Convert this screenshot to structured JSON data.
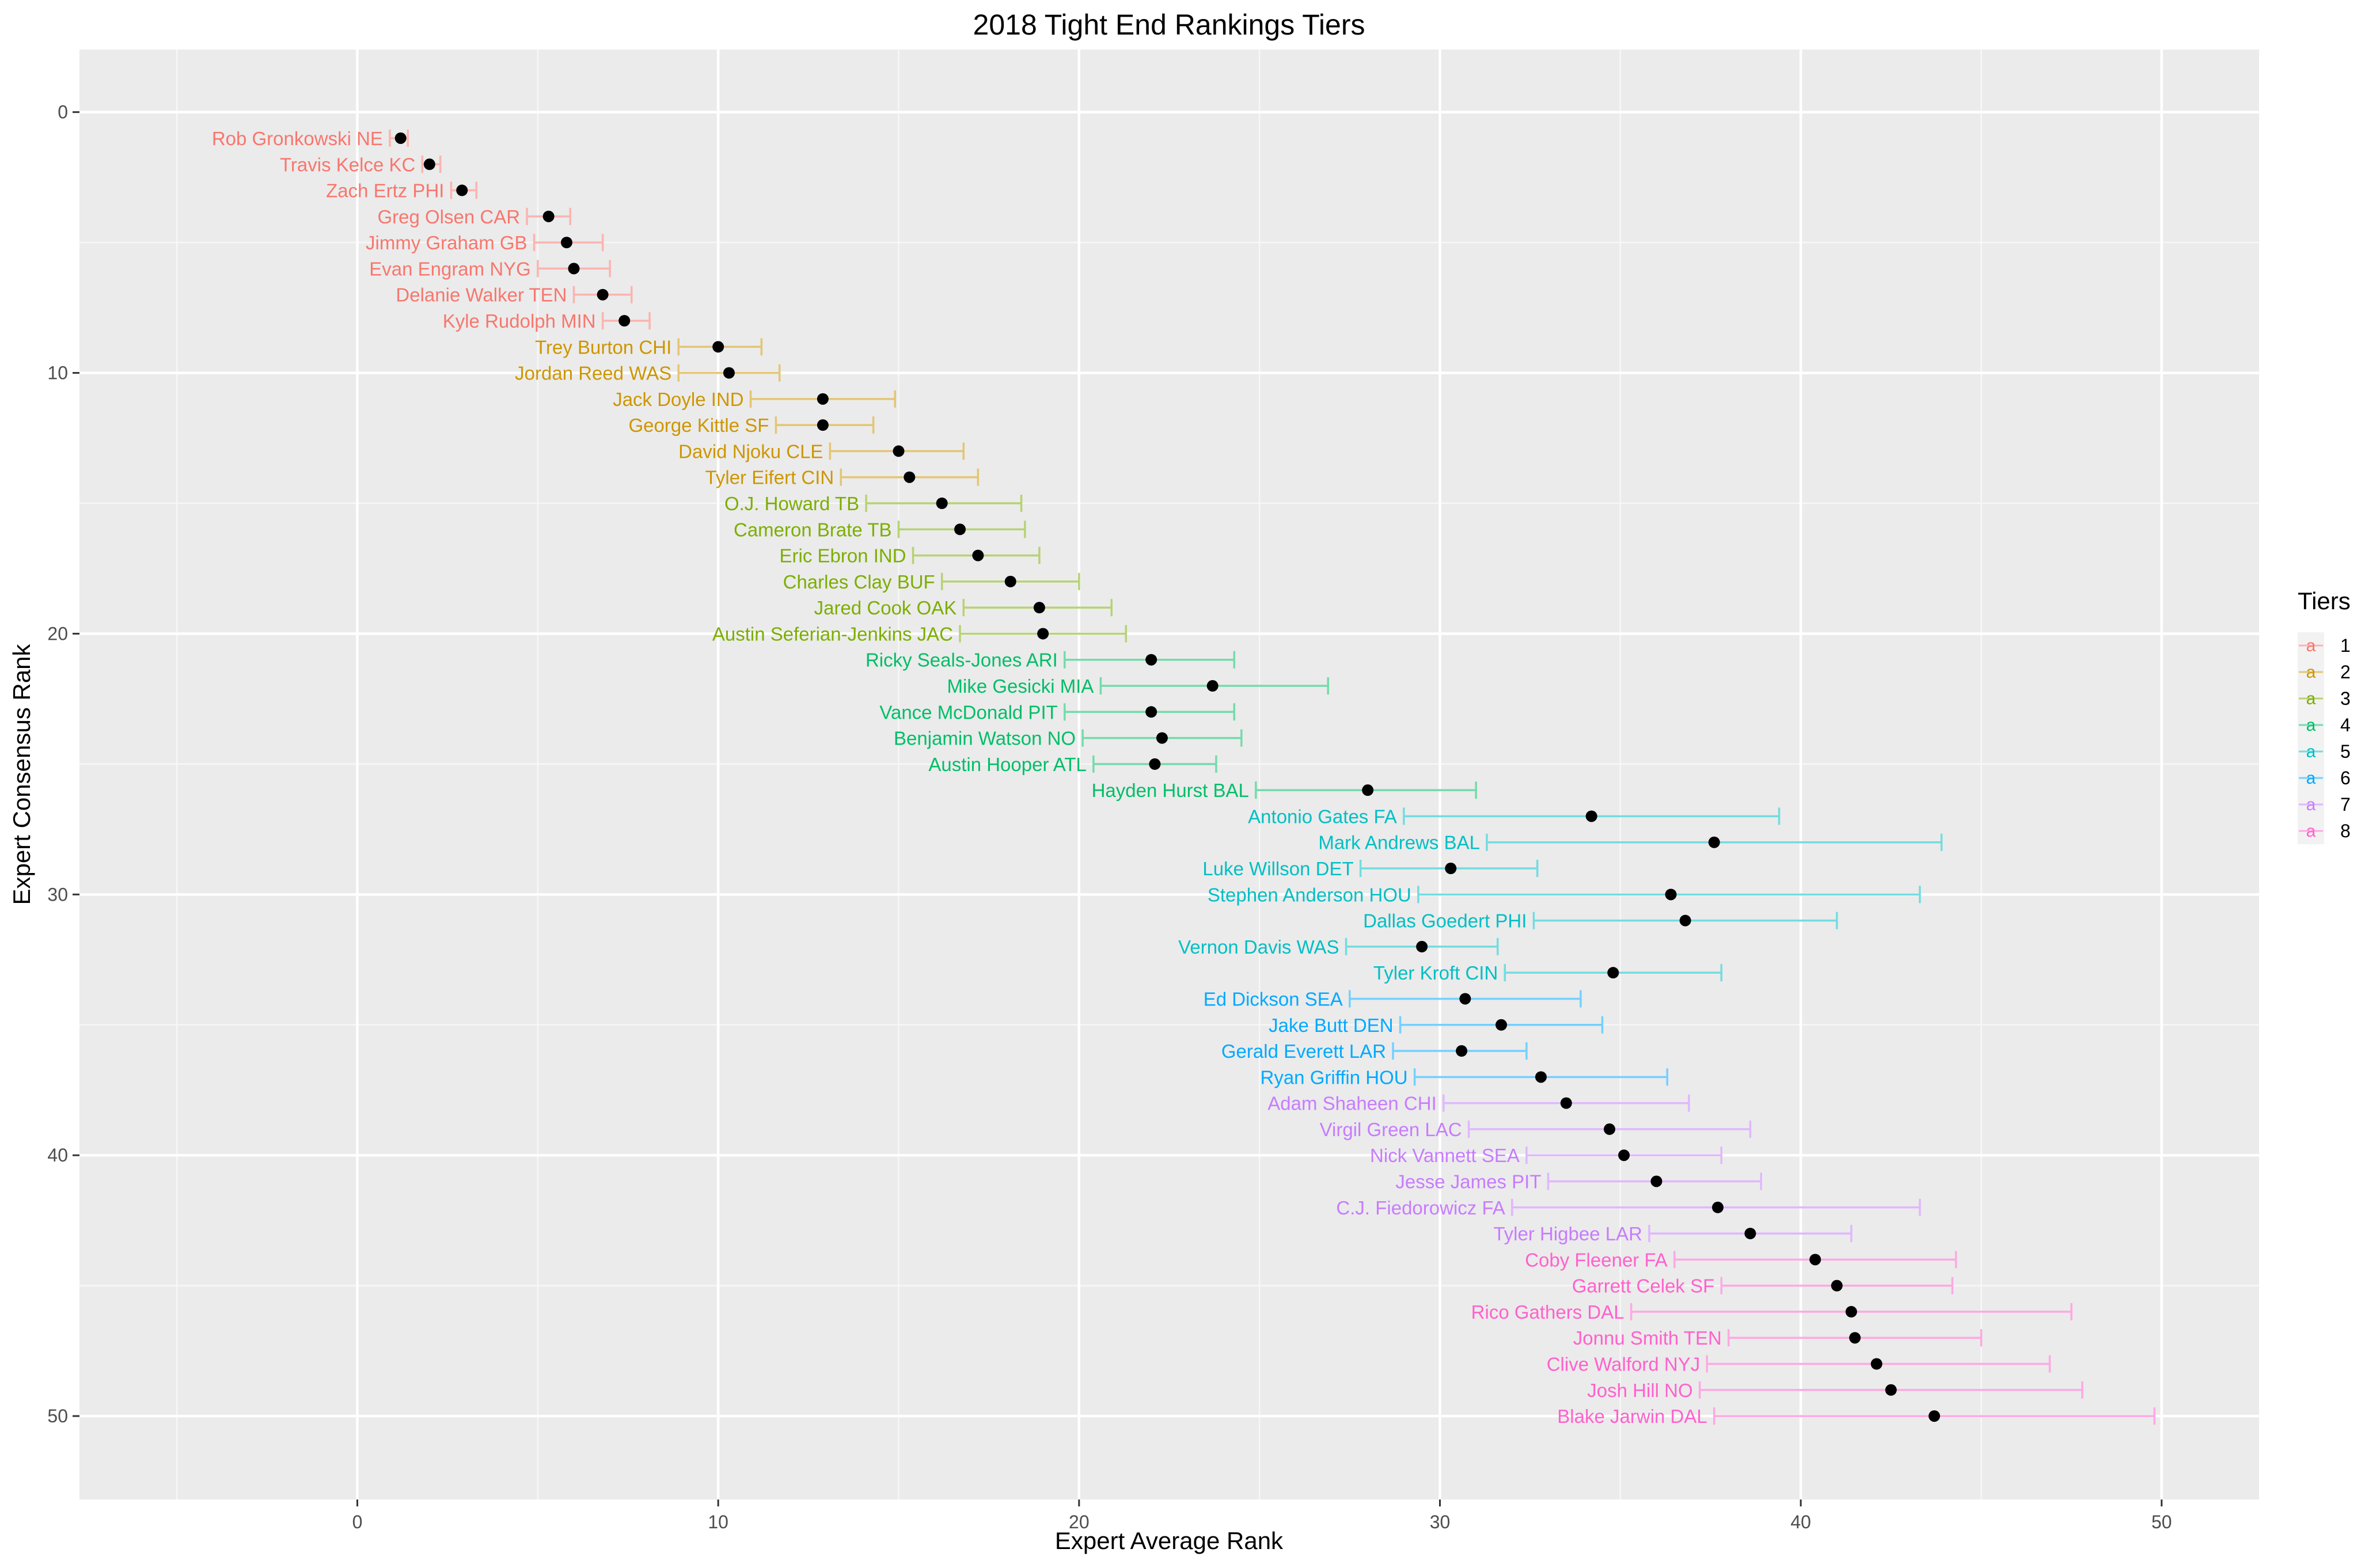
{
  "chart_data": {
    "type": "scatter",
    "title": "2018 Tight End Rankings Tiers",
    "xlabel": "Expert Average Rank",
    "ylabel": "Expert Consensus Rank",
    "xlim": [
      -7.7,
      52.7
    ],
    "ylim": [
      -2.4,
      53.2
    ],
    "y_reversed": true,
    "x_ticks": [
      0,
      10,
      20,
      30,
      40,
      50
    ],
    "y_ticks": [
      0,
      10,
      20,
      30,
      40,
      50
    ],
    "grid": true,
    "legend": {
      "title": "Tiers",
      "position": "right",
      "key_glyph": "a",
      "entries": [
        {
          "label": "1",
          "color": "#F8766D"
        },
        {
          "label": "2",
          "color": "#CD9600"
        },
        {
          "label": "3",
          "color": "#7CAE00"
        },
        {
          "label": "4",
          "color": "#00BE67"
        },
        {
          "label": "5",
          "color": "#00BFC4"
        },
        {
          "label": "6",
          "color": "#00A9FF"
        },
        {
          "label": "7",
          "color": "#C77CFF"
        },
        {
          "label": "8",
          "color": "#FF61CC"
        }
      ]
    },
    "points": [
      {
        "name": "Rob Gronkowski NE",
        "rank": 1,
        "avg": 1.2,
        "lo": 0.9,
        "hi": 1.4,
        "tier": 1
      },
      {
        "name": "Travis Kelce KC",
        "rank": 2,
        "avg": 2.0,
        "lo": 1.8,
        "hi": 2.3,
        "tier": 1
      },
      {
        "name": "Zach Ertz PHI",
        "rank": 3,
        "avg": 2.9,
        "lo": 2.6,
        "hi": 3.3,
        "tier": 1
      },
      {
        "name": "Greg Olsen CAR",
        "rank": 4,
        "avg": 5.3,
        "lo": 4.7,
        "hi": 5.9,
        "tier": 1
      },
      {
        "name": "Jimmy Graham GB",
        "rank": 5,
        "avg": 5.8,
        "lo": 4.9,
        "hi": 6.8,
        "tier": 1
      },
      {
        "name": "Evan Engram NYG",
        "rank": 6,
        "avg": 6.0,
        "lo": 5.0,
        "hi": 7.0,
        "tier": 1
      },
      {
        "name": "Delanie Walker TEN",
        "rank": 7,
        "avg": 6.8,
        "lo": 6.0,
        "hi": 7.6,
        "tier": 1
      },
      {
        "name": "Kyle Rudolph MIN",
        "rank": 8,
        "avg": 7.4,
        "lo": 6.8,
        "hi": 8.1,
        "tier": 1
      },
      {
        "name": "Trey Burton CHI",
        "rank": 9,
        "avg": 10.0,
        "lo": 8.9,
        "hi": 11.2,
        "tier": 2
      },
      {
        "name": "Jordan Reed WAS",
        "rank": 10,
        "avg": 10.3,
        "lo": 8.9,
        "hi": 11.7,
        "tier": 2
      },
      {
        "name": "Jack Doyle IND",
        "rank": 11,
        "avg": 12.9,
        "lo": 10.9,
        "hi": 14.9,
        "tier": 2
      },
      {
        "name": "George Kittle SF",
        "rank": 12,
        "avg": 12.9,
        "lo": 11.6,
        "hi": 14.3,
        "tier": 2
      },
      {
        "name": "David Njoku CLE",
        "rank": 13,
        "avg": 15.0,
        "lo": 13.1,
        "hi": 16.8,
        "tier": 2
      },
      {
        "name": "Tyler Eifert CIN",
        "rank": 14,
        "avg": 15.3,
        "lo": 13.4,
        "hi": 17.2,
        "tier": 2
      },
      {
        "name": "O.J. Howard TB",
        "rank": 15,
        "avg": 16.2,
        "lo": 14.1,
        "hi": 18.4,
        "tier": 3
      },
      {
        "name": "Cameron Brate TB",
        "rank": 16,
        "avg": 16.7,
        "lo": 15.0,
        "hi": 18.5,
        "tier": 3
      },
      {
        "name": "Eric Ebron IND",
        "rank": 17,
        "avg": 17.2,
        "lo": 15.4,
        "hi": 18.9,
        "tier": 3
      },
      {
        "name": "Charles Clay BUF",
        "rank": 18,
        "avg": 18.1,
        "lo": 16.2,
        "hi": 20.0,
        "tier": 3
      },
      {
        "name": "Jared Cook OAK",
        "rank": 19,
        "avg": 18.9,
        "lo": 16.8,
        "hi": 20.9,
        "tier": 3
      },
      {
        "name": "Austin Seferian-Jenkins JAC",
        "rank": 20,
        "avg": 19.0,
        "lo": 16.7,
        "hi": 21.3,
        "tier": 3
      },
      {
        "name": "Ricky Seals-Jones ARI",
        "rank": 21,
        "avg": 22.0,
        "lo": 19.6,
        "hi": 24.3,
        "tier": 4
      },
      {
        "name": "Mike Gesicki MIA",
        "rank": 22,
        "avg": 23.7,
        "lo": 20.6,
        "hi": 26.9,
        "tier": 4
      },
      {
        "name": "Vance McDonald PIT",
        "rank": 23,
        "avg": 22.0,
        "lo": 19.6,
        "hi": 24.3,
        "tier": 4
      },
      {
        "name": "Benjamin Watson NO",
        "rank": 24,
        "avg": 22.3,
        "lo": 20.1,
        "hi": 24.5,
        "tier": 4
      },
      {
        "name": "Austin Hooper ATL",
        "rank": 25,
        "avg": 22.1,
        "lo": 20.4,
        "hi": 23.8,
        "tier": 4
      },
      {
        "name": "Hayden Hurst BAL",
        "rank": 26,
        "avg": 28.0,
        "lo": 24.9,
        "hi": 31.0,
        "tier": 4
      },
      {
        "name": "Antonio Gates FA",
        "rank": 27,
        "avg": 34.2,
        "lo": 29.0,
        "hi": 39.4,
        "tier": 5
      },
      {
        "name": "Mark Andrews BAL",
        "rank": 28,
        "avg": 37.6,
        "lo": 31.3,
        "hi": 43.9,
        "tier": 5
      },
      {
        "name": "Luke Willson DET",
        "rank": 29,
        "avg": 30.3,
        "lo": 27.8,
        "hi": 32.7,
        "tier": 5
      },
      {
        "name": "Stephen Anderson HOU",
        "rank": 30,
        "avg": 36.4,
        "lo": 29.4,
        "hi": 43.3,
        "tier": 5
      },
      {
        "name": "Dallas Goedert PHI",
        "rank": 31,
        "avg": 36.8,
        "lo": 32.6,
        "hi": 41.0,
        "tier": 5
      },
      {
        "name": "Vernon Davis WAS",
        "rank": 32,
        "avg": 29.5,
        "lo": 27.4,
        "hi": 31.6,
        "tier": 5
      },
      {
        "name": "Tyler Kroft CIN",
        "rank": 33,
        "avg": 34.8,
        "lo": 31.8,
        "hi": 37.8,
        "tier": 5
      },
      {
        "name": "Ed Dickson SEA",
        "rank": 34,
        "avg": 30.7,
        "lo": 27.5,
        "hi": 33.9,
        "tier": 6
      },
      {
        "name": "Jake Butt DEN",
        "rank": 35,
        "avg": 31.7,
        "lo": 28.9,
        "hi": 34.5,
        "tier": 6
      },
      {
        "name": "Gerald Everett LAR",
        "rank": 36,
        "avg": 30.6,
        "lo": 28.7,
        "hi": 32.4,
        "tier": 6
      },
      {
        "name": "Ryan Griffin HOU",
        "rank": 37,
        "avg": 32.8,
        "lo": 29.3,
        "hi": 36.3,
        "tier": 6
      },
      {
        "name": "Adam Shaheen CHI",
        "rank": 38,
        "avg": 33.5,
        "lo": 30.1,
        "hi": 36.9,
        "tier": 7
      },
      {
        "name": "Virgil Green LAC",
        "rank": 39,
        "avg": 34.7,
        "lo": 30.8,
        "hi": 38.6,
        "tier": 7
      },
      {
        "name": "Nick Vannett SEA",
        "rank": 40,
        "avg": 35.1,
        "lo": 32.4,
        "hi": 37.8,
        "tier": 7
      },
      {
        "name": "Jesse James PIT",
        "rank": 41,
        "avg": 36.0,
        "lo": 33.0,
        "hi": 38.9,
        "tier": 7
      },
      {
        "name": "C.J. Fiedorowicz FA",
        "rank": 42,
        "avg": 37.7,
        "lo": 32.0,
        "hi": 43.3,
        "tier": 7
      },
      {
        "name": "Tyler Higbee LAR",
        "rank": 43,
        "avg": 38.6,
        "lo": 35.8,
        "hi": 41.4,
        "tier": 7
      },
      {
        "name": "Coby Fleener FA",
        "rank": 44,
        "avg": 40.4,
        "lo": 36.5,
        "hi": 44.3,
        "tier": 8
      },
      {
        "name": "Garrett Celek SF",
        "rank": 45,
        "avg": 41.0,
        "lo": 37.8,
        "hi": 44.2,
        "tier": 8
      },
      {
        "name": "Rico Gathers DAL",
        "rank": 46,
        "avg": 41.4,
        "lo": 35.3,
        "hi": 47.5,
        "tier": 8
      },
      {
        "name": "Jonnu Smith TEN",
        "rank": 47,
        "avg": 41.5,
        "lo": 38.0,
        "hi": 45.0,
        "tier": 8
      },
      {
        "name": "Clive Walford NYJ",
        "rank": 48,
        "avg": 42.1,
        "lo": 37.4,
        "hi": 46.9,
        "tier": 8
      },
      {
        "name": "Josh Hill NO",
        "rank": 49,
        "avg": 42.5,
        "lo": 37.2,
        "hi": 47.8,
        "tier": 8
      },
      {
        "name": "Blake Jarwin DAL",
        "rank": 50,
        "avg": 43.7,
        "lo": 37.6,
        "hi": 49.8,
        "tier": 8
      }
    ]
  }
}
